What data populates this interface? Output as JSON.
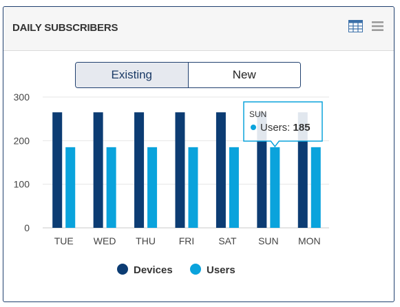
{
  "header": {
    "title": "DAILY SUBSCRIBERS",
    "icons": [
      "table-view-icon",
      "menu-icon"
    ]
  },
  "toggle": {
    "existing_label": "Existing",
    "new_label": "New",
    "selected": "Existing"
  },
  "colors": {
    "devices": "#0c3c73",
    "users": "#0aa3dc",
    "border": "#1f3f6e",
    "grid": "#e6e6e6"
  },
  "chart_data": {
    "type": "bar",
    "categories": [
      "TUE",
      "WED",
      "THU",
      "FRI",
      "SAT",
      "SUN",
      "MON"
    ],
    "series": [
      {
        "name": "Devices",
        "values": [
          265,
          265,
          265,
          265,
          265,
          265,
          265
        ]
      },
      {
        "name": "Users",
        "values": [
          185,
          185,
          185,
          185,
          185,
          185,
          185
        ]
      }
    ],
    "ylim": [
      0,
      300
    ],
    "yticks": [
      0,
      100,
      200,
      300
    ],
    "grid": true,
    "legend": "bottom-center"
  },
  "tooltip": {
    "day": "SUN",
    "series": "Users",
    "value": "185"
  }
}
